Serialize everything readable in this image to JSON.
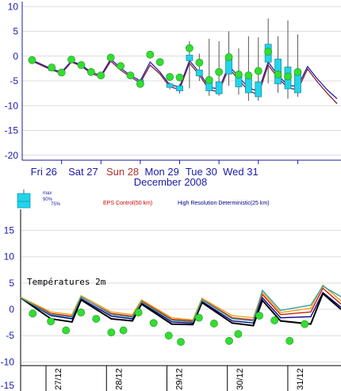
{
  "chart_data": [
    {
      "type": "line",
      "title": "",
      "xlabel": "December 2008",
      "ylabel": "",
      "ylim": [
        -21,
        11
      ],
      "yticks": [
        -20,
        -15,
        -10,
        -5,
        0,
        5,
        10
      ],
      "grid": "horizontal",
      "x_range": [
        0,
        8.1
      ],
      "day_labels": [
        {
          "label": "Fri 26",
          "x": 0.55,
          "color": "#1a1aaa"
        },
        {
          "label": "Sat 27",
          "x": 1.55,
          "color": "#1a1aaa"
        },
        {
          "label": "Sun 28",
          "x": 2.55,
          "color": "#b03030"
        },
        {
          "label": "Mon 29",
          "x": 3.55,
          "color": "#1a1aaa"
        },
        {
          "label": "Tue 30",
          "x": 4.55,
          "color": "#1a1aaa"
        },
        {
          "label": "Wed 31",
          "x": 5.55,
          "color": "#1a1aaa"
        }
      ],
      "day_boundaries": [
        1,
        2,
        3,
        4,
        5,
        6,
        7
      ],
      "colors": {
        "day_label": "#1a1aaa",
        "sunday": "#b03030",
        "axis": "#1a1aaa",
        "box": "#22d4ea",
        "point": "#33dd33"
      },
      "series": [
        {
          "name": "",
          "color": "#8c1a2a",
          "x": [
            0.25,
            0.75,
            1.0,
            1.25,
            1.5,
            1.75,
            2.0,
            2.25,
            2.5,
            2.75,
            3.0,
            3.25,
            3.5,
            3.75,
            4.0,
            4.25,
            4.5,
            4.75,
            5.0,
            5.25,
            5.5,
            5.75,
            6.0,
            6.25,
            6.5,
            6.75,
            7.0,
            7.25,
            7.5,
            7.75,
            8.0
          ],
          "y": [
            -1.0,
            -2.8,
            -3.5,
            -1.2,
            -2.0,
            -3.5,
            -4.2,
            -1.0,
            -2.8,
            -4.2,
            -5.4,
            -1.8,
            -3.6,
            -6.2,
            -6.7,
            -1.4,
            -3.8,
            -6.8,
            -7.2,
            -2.4,
            -4.8,
            -7.0,
            -7.8,
            -1.8,
            -4.4,
            -6.4,
            -6.8,
            -2.6,
            -5.2,
            -7.5,
            -9.6
          ]
        },
        {
          "name": "",
          "color": "#2222aa",
          "x": [
            0.25,
            0.75,
            1.0,
            1.25,
            1.5,
            1.75,
            2.0,
            2.25,
            2.5,
            2.75,
            3.0,
            3.25,
            3.5,
            3.75,
            4.0,
            4.25,
            4.5,
            4.75,
            5.0,
            5.25,
            5.5,
            5.75,
            6.0,
            6.25,
            6.5,
            6.75,
            7.0,
            7.25,
            7.5,
            7.75,
            8.0
          ],
          "y": [
            -0.8,
            -2.6,
            -3.2,
            -1.0,
            -1.8,
            -3.2,
            -3.9,
            -0.6,
            -2.4,
            -3.9,
            -5.0,
            -1.2,
            -3.2,
            -5.8,
            -6.2,
            -0.9,
            -3.3,
            -6.3,
            -6.6,
            -1.9,
            -4.2,
            -6.4,
            -7.1,
            -1.2,
            -3.9,
            -5.9,
            -6.1,
            -2.1,
            -4.6,
            -6.8,
            -8.6
          ]
        }
      ],
      "box_plots": [
        {
          "x": 0.75,
          "q1": -2.9,
          "q3": -2.5,
          "lo": -3.0,
          "hi": -2.4
        },
        {
          "x": 1.0,
          "q1": -3.6,
          "q3": -3.1,
          "lo": -3.8,
          "hi": -2.9
        },
        {
          "x": 3.0,
          "q1": -5.5,
          "q3": -4.8,
          "lo": -5.8,
          "hi": -4.6
        },
        {
          "x": 3.75,
          "q1": -6.3,
          "q3": -5.6,
          "lo": -6.7,
          "hi": -5.3
        },
        {
          "x": 4.0,
          "q1": -7.0,
          "q3": -6.0,
          "lo": -7.6,
          "hi": -5.6
        },
        {
          "x": 4.25,
          "q1": -0.9,
          "q3": 0.2,
          "lo": -6.5,
          "hi": 3.0
        },
        {
          "x": 4.5,
          "q1": -4.0,
          "q3": -2.8,
          "lo": -5.0,
          "hi": 0.5
        },
        {
          "x": 4.75,
          "q1": -7.0,
          "q3": -5.0,
          "lo": -8.0,
          "hi": 3.5
        },
        {
          "x": 5.0,
          "q1": -7.6,
          "q3": -5.2,
          "lo": -8.0,
          "hi": 3.0
        },
        {
          "x": 5.25,
          "q1": -3.6,
          "q3": -0.6,
          "lo": -6.0,
          "hi": 5.0
        },
        {
          "x": 5.5,
          "q1": -6.2,
          "q3": -3.4,
          "lo": -7.8,
          "hi": 1.6
        },
        {
          "x": 5.75,
          "q1": -7.4,
          "q3": -4.4,
          "lo": -9.0,
          "hi": 4.0
        },
        {
          "x": 6.0,
          "q1": -8.2,
          "q3": -5.2,
          "lo": -9.0,
          "hi": 3.8
        },
        {
          "x": 6.25,
          "q1": -1.2,
          "q3": 2.4,
          "lo": -5.5,
          "hi": 7.6
        },
        {
          "x": 6.5,
          "q1": -5.6,
          "q3": -0.6,
          "lo": -7.4,
          "hi": 4.0
        },
        {
          "x": 6.75,
          "q1": -6.6,
          "q3": -2.2,
          "lo": -8.6,
          "hi": 7.2
        },
        {
          "x": 7.0,
          "q1": -7.4,
          "q3": -3.0,
          "lo": -8.2,
          "hi": 4.4
        }
      ],
      "points": {
        "x": [
          0.25,
          0.75,
          1.0,
          1.25,
          1.5,
          1.75,
          2.0,
          2.25,
          2.5,
          2.75,
          3.0,
          3.25,
          3.5,
          3.75,
          4.0,
          4.25,
          4.5,
          4.75,
          5.0,
          5.25,
          5.5,
          5.75,
          6.0,
          6.25,
          6.5,
          6.75,
          7.0
        ],
        "y": [
          -0.8,
          -2.3,
          -3.3,
          -0.7,
          -1.8,
          -3.2,
          -3.9,
          -0.3,
          -2.0,
          -3.9,
          -5.6,
          0.3,
          -1.2,
          -4.2,
          -4.3,
          1.6,
          -1.3,
          -4.8,
          -3.2,
          -0.2,
          -3.7,
          -3.9,
          -3.0,
          0.9,
          -3.7,
          -4.1,
          -3.2
        ]
      }
    },
    {
      "type": "line",
      "title": "Températures 2m",
      "xlabel": "",
      "ylabel": "",
      "ylim": [
        -10.7,
        19
      ],
      "yticks": [
        -15,
        -10,
        -5,
        0,
        5,
        10,
        15
      ],
      "grid": "horizontal",
      "x_range": [
        0,
        5.3
      ],
      "xtick_labels": [
        {
          "label": "27/12",
          "x": 0.67
        },
        {
          "label": "28/12",
          "x": 1.67
        },
        {
          "label": "29/12",
          "x": 2.67
        },
        {
          "label": "30/12",
          "x": 3.67
        },
        {
          "label": "31/12",
          "x": 4.67
        }
      ],
      "x_boundaries": [
        0.42,
        1.42,
        2.42,
        3.42,
        4.42
      ],
      "legend_box": {
        "max": "max",
        "p90": "90%",
        "p75": "75%"
      },
      "legend": [
        {
          "label": "EPS Control(50 km)",
          "color": "#cc0000"
        },
        {
          "label": "High Resolution Deterministic(25 km)",
          "color": "#000088"
        }
      ],
      "colors": {
        "box": "#22d4ea",
        "point": "#33dd33"
      },
      "series": [
        {
          "name": "EPS Control(50 km)",
          "color": "#cc2200",
          "x": [
            0,
            0.5,
            0.85,
            1.0,
            1.5,
            1.85,
            2.0,
            2.5,
            2.85,
            3.0,
            3.5,
            3.85,
            4.0,
            4.3,
            4.8,
            5.0,
            5.3
          ],
          "y": [
            2.3,
            -0.8,
            -1.3,
            2.3,
            -0.8,
            -1.3,
            1.6,
            -1.9,
            -2.2,
            1.9,
            -1.6,
            -2.0,
            2.8,
            -1.0,
            -0.5,
            4.0,
            1.0
          ]
        },
        {
          "name": "High Resolution Deterministic(25 km)",
          "color": "#000088",
          "x": [
            0,
            0.5,
            0.85,
            1.0,
            1.5,
            1.85,
            2.0,
            2.5,
            2.85,
            3.0,
            3.5,
            3.85,
            4.0,
            4.3,
            4.8,
            5.0,
            5.3
          ],
          "y": [
            2.2,
            -1.2,
            -1.8,
            2.0,
            -1.3,
            -1.8,
            1.2,
            -2.4,
            -2.6,
            1.5,
            -2.2,
            -2.6,
            2.2,
            -1.6,
            -1.4,
            3.2,
            0.4
          ]
        },
        {
          "name": "",
          "color": "#000000",
          "x": [
            0,
            0.5,
            0.85,
            1.0,
            1.5,
            1.85,
            2.0,
            2.5,
            2.85,
            3.0,
            3.5,
            3.85,
            4.0,
            4.3,
            4.8,
            5.0,
            5.3
          ],
          "y": [
            2.2,
            -1.8,
            -2.4,
            1.8,
            -1.8,
            -2.2,
            1.0,
            -2.8,
            -2.9,
            1.3,
            -2.6,
            -3.1,
            1.7,
            -2.2,
            -2.8,
            3.0,
            0.0
          ]
        },
        {
          "name": "",
          "color": "#e8a020",
          "x": [
            0,
            0.5,
            0.85,
            1.0,
            1.5,
            1.85,
            2.0,
            2.5,
            2.85,
            3.0,
            3.5,
            3.85,
            4.0,
            4.3,
            4.8,
            5.0,
            5.3
          ],
          "y": [
            2.3,
            -0.5,
            -1.0,
            2.6,
            -0.5,
            -1.0,
            1.8,
            -1.6,
            -2.0,
            2.1,
            -1.2,
            -1.6,
            3.2,
            -0.6,
            0.2,
            4.6,
            1.6
          ]
        },
        {
          "name": "",
          "color": "#3aa0a0",
          "x": [
            0,
            0.5,
            0.85,
            1.0,
            1.5,
            1.85,
            2.0,
            2.5,
            2.85,
            3.0,
            3.5,
            3.85,
            4.0,
            4.3,
            4.8,
            5.0,
            5.3
          ],
          "y": [
            2.2,
            -1.0,
            -1.5,
            2.4,
            -1.0,
            -1.5,
            1.4,
            -2.1,
            -2.4,
            1.8,
            -1.8,
            -2.2,
            3.6,
            -0.2,
            0.8,
            4.4,
            2.4
          ]
        }
      ],
      "points": {
        "x": [
          0.2,
          0.5,
          0.75,
          1.0,
          1.25,
          1.5,
          1.7,
          1.95,
          2.2,
          2.45,
          2.65,
          2.95,
          3.2,
          3.45,
          3.6,
          3.95,
          4.2,
          4.45,
          4.7
        ],
        "y": [
          -0.8,
          -2.3,
          -4.0,
          -0.6,
          -1.8,
          -4.4,
          -4.0,
          -0.6,
          -2.6,
          -5.0,
          -6.2,
          -1.6,
          -2.7,
          -6.0,
          -4.7,
          -1.2,
          -2.1,
          -6.0,
          -2.8
        ]
      }
    }
  ]
}
